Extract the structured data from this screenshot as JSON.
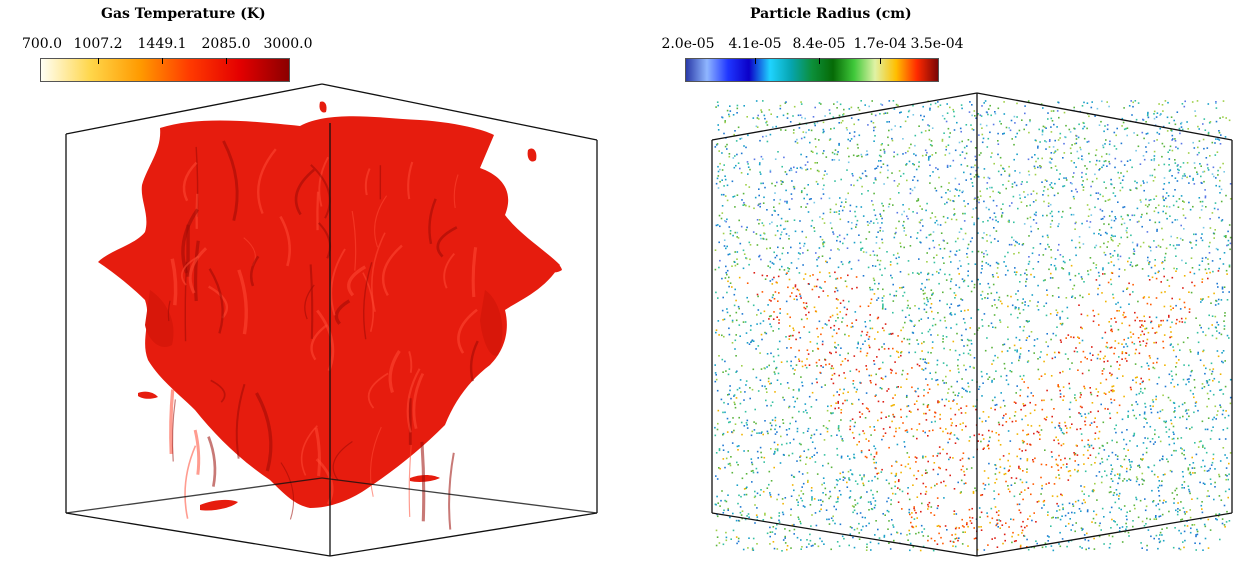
{
  "left_panel": {
    "colorbar": {
      "title": "Gas Temperature (K)",
      "ticks": [
        "700.0",
        "1007.2",
        "1449.1",
        "2085.0",
        "3000.0"
      ],
      "colors": [
        "#fffff5",
        "#ffd64a",
        "#ff9a00",
        "#ff3a00",
        "#e40000",
        "#8c0000"
      ]
    },
    "render": {
      "surface_color": "#e61c0e",
      "shadow_color": "#9b0b05",
      "highlight_color": "#ff4a35"
    }
  },
  "right_panel": {
    "colorbar": {
      "title": "Particle Radius (cm)",
      "ticks": [
        "2.0e-05",
        "4.1e-05",
        "8.4e-05",
        "1.7e-04",
        "3.5e-04"
      ],
      "colors": [
        "#2a3aa8",
        "#8fb6ff",
        "#1f36ff",
        "#0b00c8",
        "#1fd3ff",
        "#06a5b0",
        "#0c8f3a",
        "#066a06",
        "#3fc83a",
        "#dff2a5",
        "#ffbf00",
        "#ff2a00",
        "#7a0606"
      ]
    },
    "render": {
      "particle_colors": [
        "#1e78d2",
        "#19a0c8",
        "#35c0a0",
        "#5ab43c",
        "#9ed048",
        "#f0b400",
        "#ff5a00",
        "#dc1e14",
        "#5a78e6",
        "#78c8e6"
      ]
    }
  }
}
